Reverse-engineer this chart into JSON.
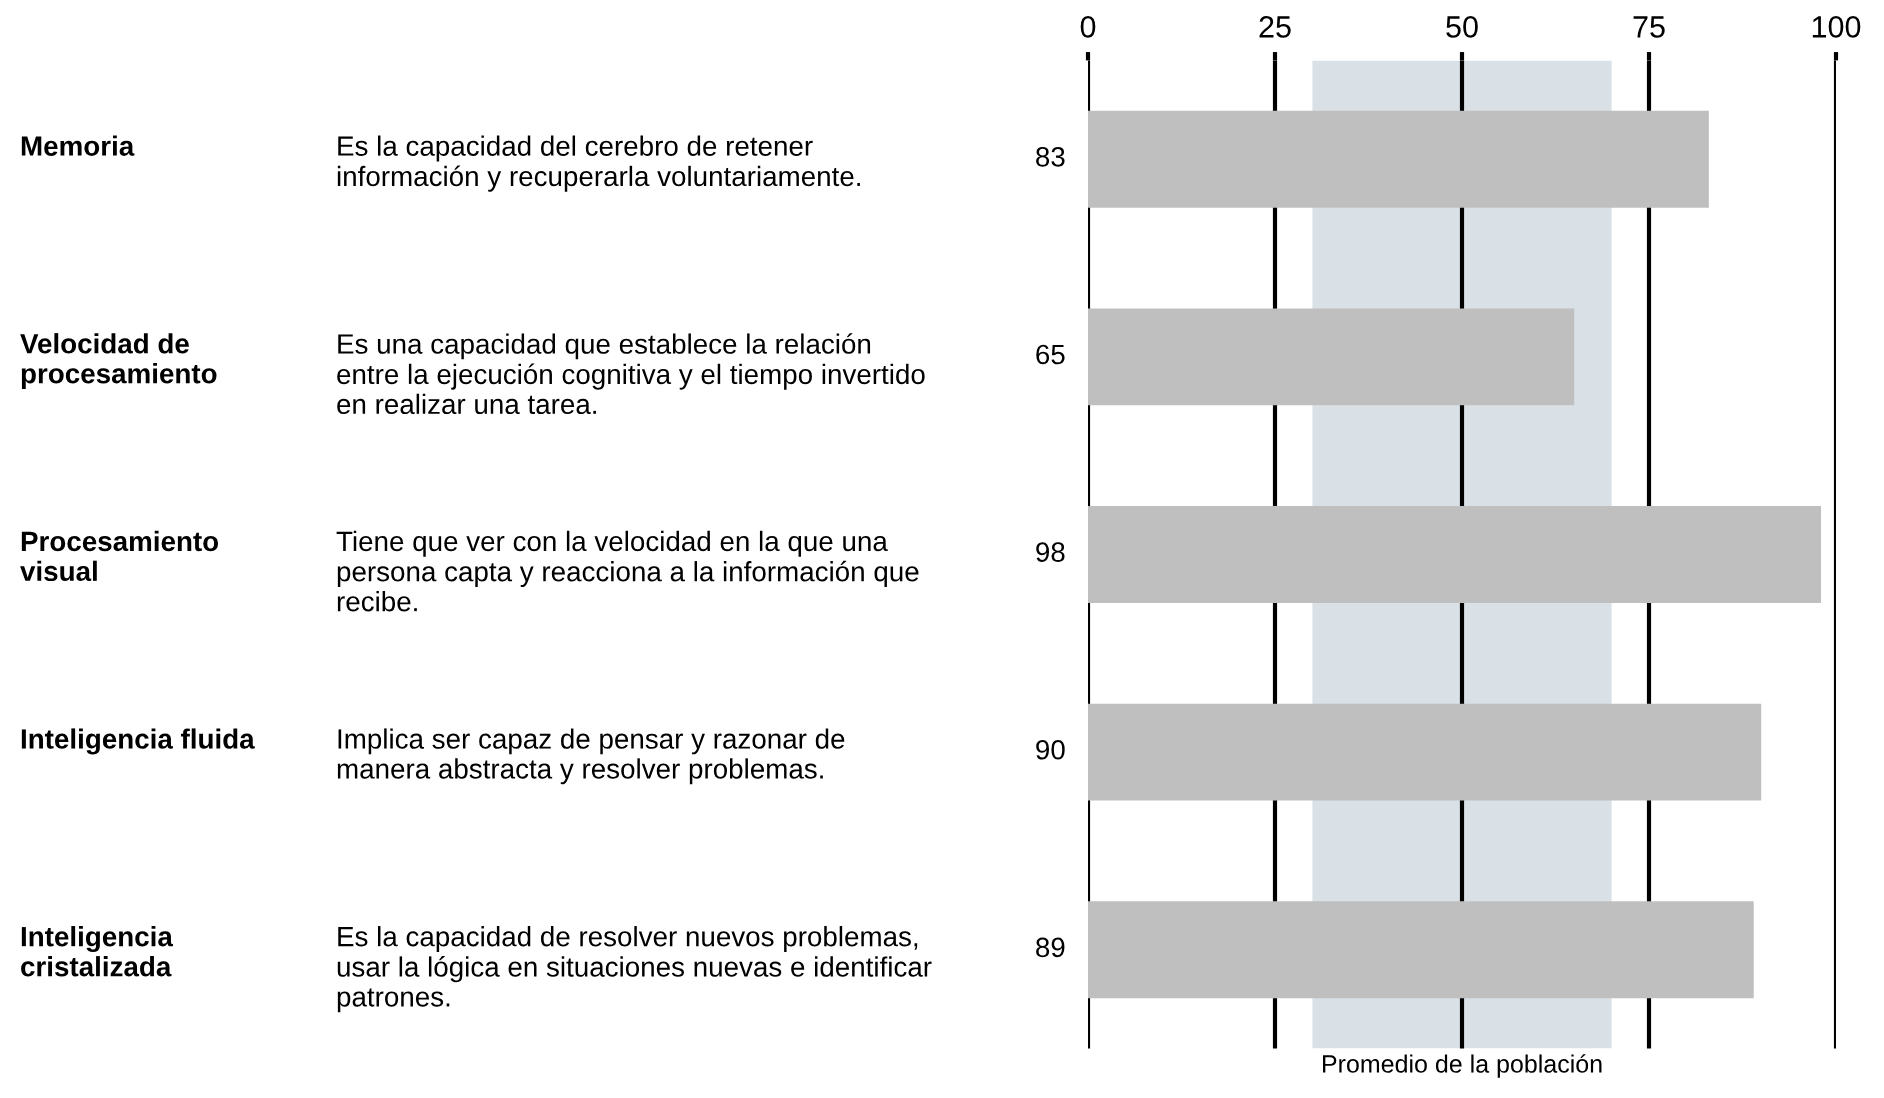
{
  "chart_data": {
    "type": "bar",
    "orientation": "horizontal",
    "categories": [
      "Memoria",
      "Velocidad de procesamiento",
      "Procesamiento visual",
      "Inteligencia fluida",
      "Inteligencia cristalizada"
    ],
    "values": [
      83,
      65,
      98,
      90,
      89
    ],
    "color": "#bfbfbf",
    "data_labels": true,
    "x2lim": [
      0,
      100
    ],
    "x2ticks": [
      0,
      25,
      50,
      75,
      100
    ],
    "grid": "x",
    "bands": [
      {
        "axis": "x",
        "from": 30,
        "to": 70,
        "label": "Promedio de la población",
        "color": "#d9e1e6"
      }
    ],
    "annotations": [
      "Es la capacidad del cerebro de retener información y recuperarla voluntariamente.",
      "Es una capacidad que establece la relación entre la ejecución cognitiva y el tiempo invertido en realizar una tarea.",
      "Tiene que ver con la velocidad en la que una persona capta y reacciona a la información que recibe.",
      "Implica ser capaz de pensar y razonar de manera abstracta y resolver problemas.",
      "Es la capacidad de resolver nuevos problemas, usar la lógica en situaciones nuevas e identificar patrones."
    ]
  }
}
